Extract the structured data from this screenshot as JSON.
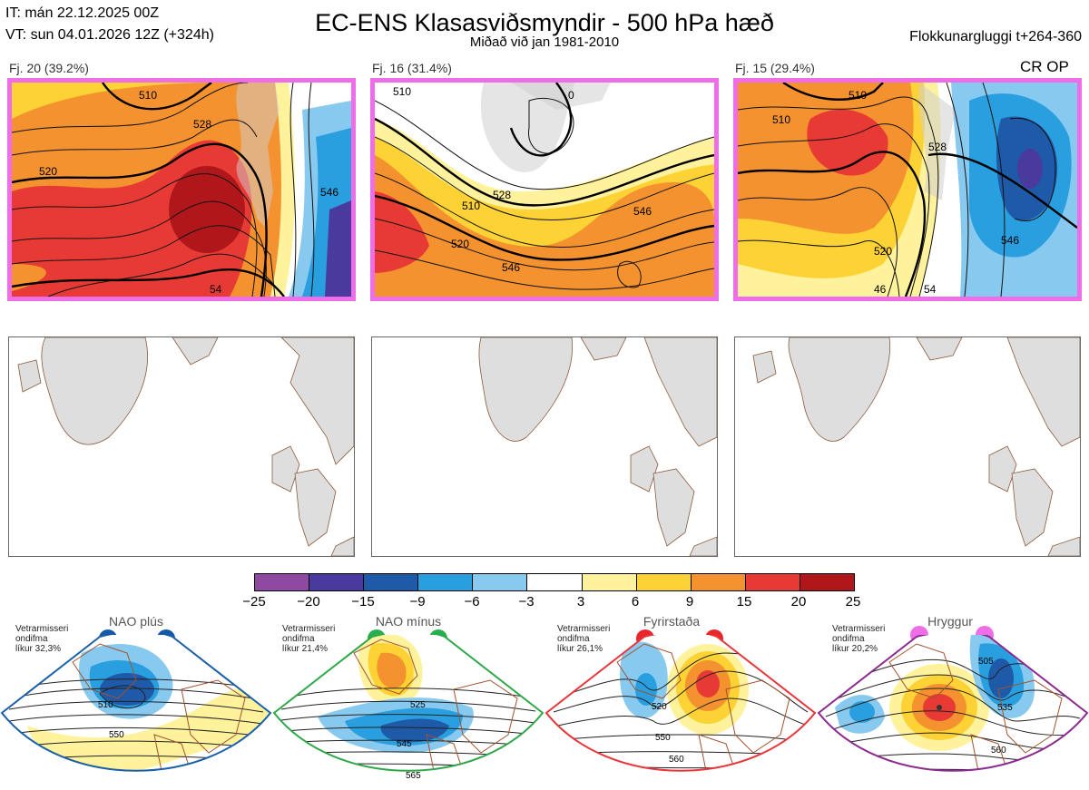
{
  "header": {
    "it_line": "IT: mán 22.12.2025 00Z",
    "vt_line": "VT: sun 04.01.2026 12Z  (+324h)",
    "title": "EC-ENS Klasasviðsmyndir - 500 hPa hæð",
    "subtitle": "Miðað við jan 1981-2010",
    "window": "Flokkunargluggi t+264-360",
    "crop": "CR OP"
  },
  "clusters": [
    {
      "label": "Fj. 20 (39.2%)",
      "contour_labels": [
        "510",
        "520",
        "528",
        "546",
        "54"
      ]
    },
    {
      "label": "Fj. 16 (31.4%)",
      "contour_labels": [
        "510",
        "520",
        "528",
        "546",
        "546",
        "510",
        "0"
      ]
    },
    {
      "label": "Fj. 15 (29.4%)",
      "contour_labels": [
        "510",
        "520",
        "528",
        "546",
        "510",
        "46",
        "54"
      ]
    }
  ],
  "colorbar": {
    "colors": [
      "#8e4aa1",
      "#4a3a9e",
      "#1e5aa8",
      "#2a9fe0",
      "#88c9ef",
      "#ffffff",
      "#fff29c",
      "#fdd235",
      "#f4922f",
      "#e83a34",
      "#b0171b"
    ],
    "ticks": [
      "−25",
      "−20",
      "−15",
      "−9",
      "−6",
      "−3",
      "3",
      "6",
      "9",
      "15",
      "20",
      "25"
    ]
  },
  "regimes": [
    {
      "name": "NAO plús",
      "prob_lines": [
        "Vetrarmisseri",
        "ondifma",
        "líkur 32,3%"
      ],
      "border": "#1a5fa8",
      "dot": "#1459a6",
      "contour_labels": [
        "510",
        "550"
      ]
    },
    {
      "name": "NAO mínus",
      "prob_lines": [
        "Vetrarmisseri",
        "ondifma",
        "líkur 21,4%"
      ],
      "border": "#2fa84a",
      "dot": "#27ae4f",
      "contour_labels": [
        "525",
        "545",
        "565"
      ]
    },
    {
      "name": "Fyrirstaða",
      "prob_lines": [
        "Vetrarmisseri",
        "ondifma",
        "líkur 26,1%"
      ],
      "border": "#e8363a",
      "dot": "#e8262c",
      "contour_labels": [
        "520",
        "550",
        "560"
      ]
    },
    {
      "name": "Hryggur",
      "prob_lines": [
        "Vetrarmisseri",
        "ondifma",
        "líkur 20,2%"
      ],
      "border": "#8a2a8e",
      "dot": "#ee6ee8",
      "contour_labels": [
        "505",
        "535",
        "560"
      ]
    }
  ]
}
